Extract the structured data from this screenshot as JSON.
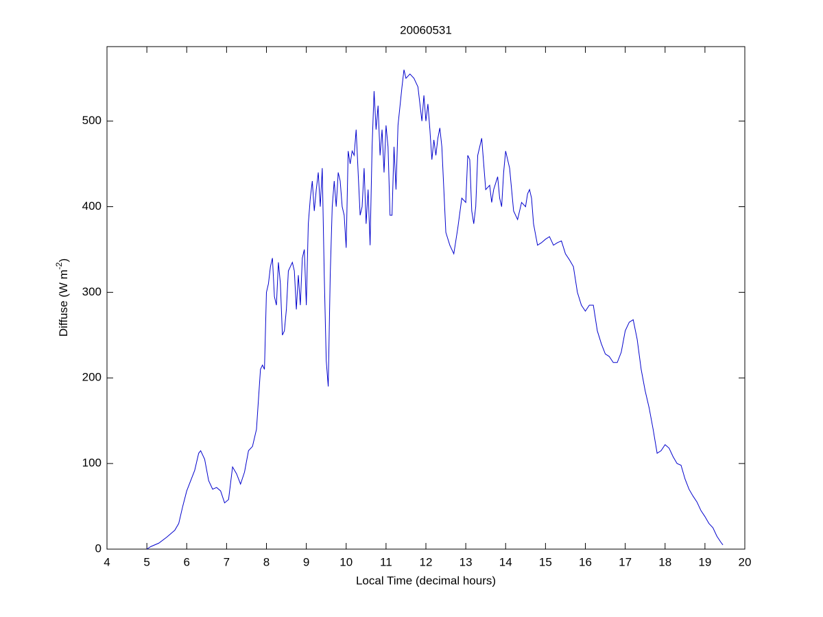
{
  "chart_data": {
    "type": "line",
    "title": "20060531",
    "xlabel": "Local Time (decimal hours)",
    "ylabel": [
      "Diffuse (W m",
      "-2",
      ")"
    ],
    "xlim": [
      4,
      20
    ],
    "xticks": [
      4,
      5,
      6,
      7,
      8,
      9,
      10,
      11,
      12,
      13,
      14,
      15,
      16,
      17,
      18,
      19,
      20
    ],
    "ylim": [
      0,
      587
    ],
    "yticks": [
      0,
      100,
      200,
      300,
      400,
      500
    ],
    "grid": false,
    "series": [
      {
        "color": "#0000cc",
        "x": [
          5.0,
          5.1,
          5.3,
          5.5,
          5.7,
          5.8,
          5.9,
          6.0,
          6.1,
          6.2,
          6.3,
          6.35,
          6.45,
          6.55,
          6.65,
          6.75,
          6.85,
          6.95,
          7.05,
          7.15,
          7.25,
          7.35,
          7.45,
          7.55,
          7.65,
          7.75,
          7.85,
          7.9,
          7.95,
          8.0,
          8.05,
          8.1,
          8.15,
          8.2,
          8.25,
          8.3,
          8.35,
          8.4,
          8.45,
          8.5,
          8.55,
          8.6,
          8.65,
          8.7,
          8.75,
          8.8,
          8.85,
          8.9,
          8.95,
          9.0,
          9.05,
          9.1,
          9.15,
          9.2,
          9.25,
          9.3,
          9.35,
          9.4,
          9.45,
          9.5,
          9.55,
          9.6,
          9.65,
          9.7,
          9.75,
          9.8,
          9.85,
          9.9,
          9.95,
          10.0,
          10.05,
          10.1,
          10.15,
          10.2,
          10.25,
          10.3,
          10.35,
          10.4,
          10.45,
          10.5,
          10.55,
          10.6,
          10.65,
          10.7,
          10.75,
          10.8,
          10.85,
          10.9,
          10.95,
          11.0,
          11.05,
          11.1,
          11.15,
          11.2,
          11.25,
          11.3,
          11.4,
          11.45,
          11.5,
          11.6,
          11.7,
          11.75,
          11.8,
          11.85,
          11.9,
          11.95,
          12.0,
          12.05,
          12.1,
          12.15,
          12.2,
          12.25,
          12.3,
          12.35,
          12.4,
          12.45,
          12.5,
          12.6,
          12.7,
          12.8,
          12.9,
          13.0,
          13.05,
          13.1,
          13.15,
          13.2,
          13.25,
          13.3,
          13.4,
          13.45,
          13.5,
          13.6,
          13.65,
          13.7,
          13.8,
          13.85,
          13.9,
          13.95,
          14.0,
          14.1,
          14.15,
          14.2,
          14.3,
          14.4,
          14.5,
          14.55,
          14.6,
          14.65,
          14.7,
          14.8,
          14.9,
          15.0,
          15.1,
          15.2,
          15.3,
          15.4,
          15.5,
          15.6,
          15.7,
          15.8,
          15.9,
          16.0,
          16.1,
          16.2,
          16.3,
          16.4,
          16.5,
          16.6,
          16.7,
          16.8,
          16.9,
          17.0,
          17.1,
          17.2,
          17.3,
          17.4,
          17.5,
          17.6,
          17.7,
          17.8,
          17.9,
          18.0,
          18.1,
          18.2,
          18.3,
          18.4,
          18.5,
          18.6,
          18.7,
          18.8,
          18.9,
          19.0,
          19.1,
          19.2,
          19.3,
          19.4,
          19.45
        ],
        "values": [
          0,
          3,
          7,
          14,
          22,
          30,
          50,
          68,
          80,
          92,
          112,
          115,
          105,
          80,
          70,
          72,
          68,
          54,
          58,
          96,
          88,
          76,
          90,
          115,
          120,
          140,
          210,
          215,
          210,
          300,
          310,
          330,
          340,
          295,
          285,
          335,
          310,
          250,
          255,
          280,
          325,
          330,
          335,
          325,
          280,
          320,
          285,
          340,
          350,
          285,
          380,
          410,
          430,
          395,
          420,
          440,
          400,
          445,
          320,
          220,
          190,
          320,
          400,
          430,
          400,
          440,
          430,
          400,
          390,
          352,
          465,
          450,
          465,
          460,
          490,
          440,
          390,
          400,
          445,
          380,
          420,
          355,
          470,
          535,
          490,
          518,
          460,
          490,
          440,
          495,
          470,
          390,
          390,
          470,
          420,
          495,
          540,
          560,
          550,
          555,
          550,
          545,
          540,
          520,
          500,
          530,
          500,
          520,
          490,
          455,
          478,
          460,
          480,
          492,
          470,
          420,
          370,
          355,
          345,
          375,
          410,
          405,
          460,
          455,
          395,
          380,
          400,
          460,
          480,
          450,
          420,
          425,
          405,
          420,
          435,
          410,
          400,
          440,
          465,
          445,
          420,
          395,
          385,
          405,
          400,
          415,
          420,
          410,
          380,
          355,
          358,
          362,
          365,
          355,
          358,
          360,
          345,
          338,
          330,
          300,
          285,
          278,
          285,
          285,
          255,
          240,
          228,
          225,
          218,
          218,
          230,
          255,
          265,
          268,
          245,
          210,
          185,
          165,
          140,
          112,
          115,
          122,
          118,
          108,
          100,
          98,
          82,
          70,
          62,
          55,
          45,
          38,
          30,
          25,
          15,
          8,
          5
        ]
      }
    ]
  }
}
